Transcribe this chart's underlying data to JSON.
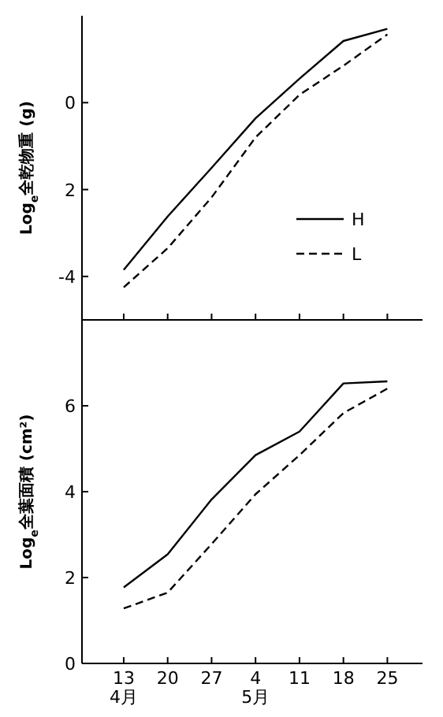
{
  "chart_data": [
    {
      "type": "line",
      "ylabel": "Log$_{e}$全乾物重 (g)",
      "ylim": [
        -5,
        2
      ],
      "categories": [
        null,
        null,
        null,
        null,
        null,
        null,
        null
      ],
      "yticks": [
        0,
        {
          "value": -2,
          "label": "2"
        },
        -4
      ],
      "tick_labels": "y",
      "legend": "bottom right",
      "series": [
        {
          "name": "H",
          "color": "#000000",
          "line_style": "solid",
          "values": [
            -3.85,
            -2.62,
            -1.5,
            -0.36,
            0.55,
            1.42,
            1.7
          ]
        },
        {
          "name": "L",
          "color": "#000000",
          "line_style": "dashed",
          "values": [
            -4.25,
            -3.35,
            -2.18,
            -0.8,
            0.18,
            0.85,
            1.57
          ]
        }
      ]
    },
    {
      "type": "line",
      "ylabel": "Log$_{e}$全葉面積 (cm²)",
      "ylim": [
        0,
        8
      ],
      "categories": [
        "13\n4月",
        "20",
        "27",
        "4\n5月",
        "11",
        "18",
        "25"
      ],
      "yticks": [
        0,
        2,
        4,
        6
      ],
      "series": [
        {
          "color": "#000000",
          "line_style": "solid",
          "values": [
            1.77,
            2.54,
            3.82,
            4.85,
            5.4,
            6.52,
            6.57
          ]
        },
        {
          "color": "#000000",
          "line_style": "dashed",
          "values": [
            1.28,
            1.65,
            2.78,
            3.94,
            4.85,
            5.83,
            6.4
          ]
        }
      ]
    }
  ]
}
